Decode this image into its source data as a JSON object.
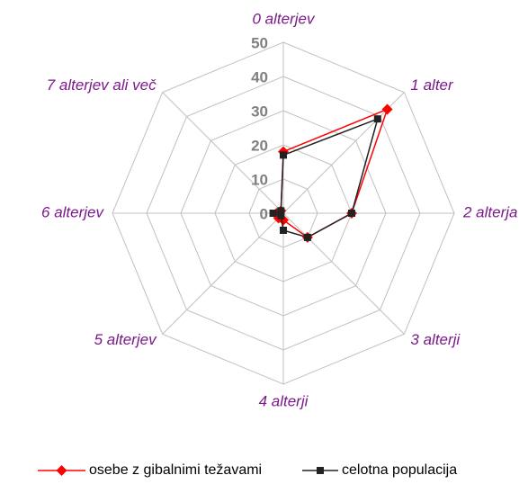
{
  "chart_data": {
    "type": "radar",
    "categories": [
      "0 alterjev",
      "1 alter",
      "2 alterja",
      "3 alterji",
      "4 alterji",
      "5 alterjev",
      "6 alterjev",
      "7 alterjev ali več"
    ],
    "series": [
      {
        "name": "osebe z gibalnimi težavami",
        "color": "#ff0000",
        "marker": "diamond",
        "values": [
          18,
          43,
          20,
          10,
          2,
          2,
          2,
          1
        ]
      },
      {
        "name": "celotna populacija",
        "color": "#222222",
        "marker": "square",
        "values": [
          17,
          39,
          20,
          10,
          5,
          1,
          3,
          1
        ]
      }
    ],
    "ylim": [
      0,
      50
    ],
    "yticks": [
      0,
      10,
      20,
      30,
      40,
      50
    ],
    "grid": true,
    "legend": "bottom"
  }
}
